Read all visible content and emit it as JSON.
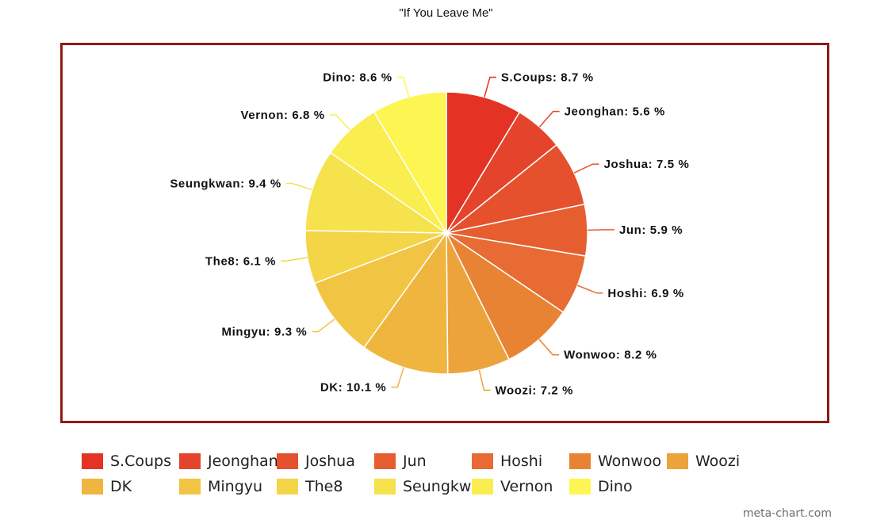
{
  "chart_data": {
    "type": "pie",
    "title": "\"If You Leave Me\"",
    "slices": [
      {
        "name": "S.Coups",
        "value": 8.7,
        "label": "S.Coups: 8.7 %",
        "color": "#e43324"
      },
      {
        "name": "Jeonghan",
        "value": 5.6,
        "label": "Jeonghan: 5.6 %",
        "color": "#e4442b"
      },
      {
        "name": "Joshua",
        "value": 7.5,
        "label": "Joshua: 7.5 %",
        "color": "#e5512d"
      },
      {
        "name": "Jun",
        "value": 5.9,
        "label": "Jun: 5.9 %",
        "color": "#e65d30"
      },
      {
        "name": "Hoshi",
        "value": 6.9,
        "label": "Hoshi: 6.9 %",
        "color": "#e76b32"
      },
      {
        "name": "Wonwoo",
        "value": 8.2,
        "label": "Wonwoo: 8.2 %",
        "color": "#e98334"
      },
      {
        "name": "Woozi",
        "value": 7.2,
        "label": "Woozi: 7.2 %",
        "color": "#eda33c"
      },
      {
        "name": "DK",
        "value": 10.1,
        "label": "DK: 10.1 %",
        "color": "#f0b53f"
      },
      {
        "name": "Mingyu",
        "value": 9.3,
        "label": "Mingyu: 9.3 %",
        "color": "#f1c443"
      },
      {
        "name": "The8",
        "value": 6.1,
        "label": "The8: 6.1 %",
        "color": "#f4d548"
      },
      {
        "name": "Seungkwan",
        "value": 9.4,
        "label": "Seungkwan: 9.4 %",
        "color": "#f6e24c"
      },
      {
        "name": "Vernon",
        "value": 6.8,
        "label": "Vernon: 6.8 %",
        "color": "#f9ed4f"
      },
      {
        "name": "Dino",
        "value": 8.6,
        "label": "Dino: 8.6 %",
        "color": "#fdf652"
      }
    ],
    "legend_position": "bottom",
    "border_color": "#8e1b14"
  },
  "watermark": "meta-chart.com"
}
